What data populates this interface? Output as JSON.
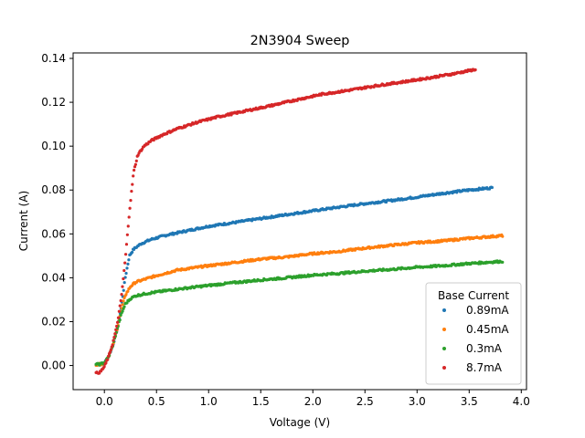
{
  "chart_data": {
    "type": "scatter",
    "title": "2N3904 Sweep",
    "xlabel": "Voltage (V)",
    "ylabel": "Current (A)",
    "xlim": [
      -0.3,
      4.05
    ],
    "ylim": [
      -0.011,
      0.1425
    ],
    "x_ticks": [
      0.0,
      0.5,
      1.0,
      1.5,
      2.0,
      2.5,
      3.0,
      3.5,
      4.0
    ],
    "x_tick_labels": [
      "0.0",
      "0.5",
      "1.0",
      "1.5",
      "2.0",
      "2.5",
      "3.0",
      "3.5",
      "4.0"
    ],
    "y_ticks": [
      0.0,
      0.02,
      0.04,
      0.06,
      0.08,
      0.1,
      0.12,
      0.14
    ],
    "y_tick_labels": [
      "0.00",
      "0.02",
      "0.04",
      "0.06",
      "0.08",
      "0.10",
      "0.12",
      "0.14"
    ],
    "grid": false,
    "legend": {
      "title": "Base Current",
      "position": "lower-right"
    },
    "series": [
      {
        "name": "0.89mA",
        "color": "#1f77b4",
        "points": [
          [
            -0.08,
            0.0005
          ],
          [
            -0.04,
            0.0006
          ],
          [
            0.0,
            0.0012
          ],
          [
            0.04,
            0.004
          ],
          [
            0.08,
            0.009
          ],
          [
            0.12,
            0.016
          ],
          [
            0.16,
            0.026
          ],
          [
            0.2,
            0.04
          ],
          [
            0.24,
            0.05
          ],
          [
            0.28,
            0.053
          ],
          [
            0.35,
            0.0555
          ],
          [
            0.45,
            0.0575
          ],
          [
            0.6,
            0.0595
          ],
          [
            0.8,
            0.0615
          ],
          [
            1.0,
            0.0635
          ],
          [
            1.25,
            0.0652
          ],
          [
            1.5,
            0.067
          ],
          [
            1.75,
            0.0688
          ],
          [
            2.0,
            0.0705
          ],
          [
            2.25,
            0.0722
          ],
          [
            2.5,
            0.0738
          ],
          [
            2.75,
            0.0752
          ],
          [
            3.0,
            0.0768
          ],
          [
            3.25,
            0.0785
          ],
          [
            3.5,
            0.08
          ],
          [
            3.72,
            0.081
          ]
        ]
      },
      {
        "name": "0.45mA",
        "color": "#ff7f0e",
        "points": [
          [
            -0.08,
            0.0005
          ],
          [
            -0.04,
            0.0006
          ],
          [
            0.0,
            0.0012
          ],
          [
            0.04,
            0.004
          ],
          [
            0.08,
            0.009
          ],
          [
            0.12,
            0.016
          ],
          [
            0.16,
            0.025
          ],
          [
            0.2,
            0.032
          ],
          [
            0.25,
            0.036
          ],
          [
            0.3,
            0.038
          ],
          [
            0.4,
            0.0395
          ],
          [
            0.5,
            0.041
          ],
          [
            0.7,
            0.0435
          ],
          [
            1.0,
            0.0455
          ],
          [
            1.25,
            0.047
          ],
          [
            1.5,
            0.0485
          ],
          [
            1.75,
            0.0495
          ],
          [
            2.0,
            0.051
          ],
          [
            2.25,
            0.052
          ],
          [
            2.5,
            0.0535
          ],
          [
            2.75,
            0.0548
          ],
          [
            3.0,
            0.056
          ],
          [
            3.25,
            0.0568
          ],
          [
            3.5,
            0.058
          ],
          [
            3.82,
            0.0592
          ]
        ]
      },
      {
        "name": "0.3mA",
        "color": "#2ca02c",
        "points": [
          [
            -0.08,
            0.0005
          ],
          [
            -0.04,
            0.0006
          ],
          [
            0.0,
            0.0012
          ],
          [
            0.04,
            0.004
          ],
          [
            0.08,
            0.009
          ],
          [
            0.12,
            0.016
          ],
          [
            0.16,
            0.023
          ],
          [
            0.2,
            0.028
          ],
          [
            0.25,
            0.0305
          ],
          [
            0.3,
            0.0318
          ],
          [
            0.4,
            0.0328
          ],
          [
            0.5,
            0.0335
          ],
          [
            0.7,
            0.0348
          ],
          [
            1.0,
            0.0365
          ],
          [
            1.25,
            0.0378
          ],
          [
            1.5,
            0.039
          ],
          [
            1.75,
            0.04
          ],
          [
            2.0,
            0.0412
          ],
          [
            2.25,
            0.042
          ],
          [
            2.5,
            0.043
          ],
          [
            2.75,
            0.0438
          ],
          [
            3.0,
            0.0448
          ],
          [
            3.25,
            0.0455
          ],
          [
            3.5,
            0.0465
          ],
          [
            3.82,
            0.0475
          ]
        ]
      },
      {
        "name": "8.7mA",
        "color": "#d62728",
        "points": [
          [
            -0.08,
            -0.0035
          ],
          [
            -0.04,
            -0.003
          ],
          [
            0.0,
            -0.0005
          ],
          [
            0.04,
            0.004
          ],
          [
            0.08,
            0.01
          ],
          [
            0.12,
            0.018
          ],
          [
            0.16,
            0.03
          ],
          [
            0.2,
            0.048
          ],
          [
            0.24,
            0.07
          ],
          [
            0.28,
            0.088
          ],
          [
            0.32,
            0.096
          ],
          [
            0.38,
            0.1
          ],
          [
            0.45,
            0.1025
          ],
          [
            0.55,
            0.105
          ],
          [
            0.7,
            0.108
          ],
          [
            0.9,
            0.111
          ],
          [
            1.1,
            0.1135
          ],
          [
            1.35,
            0.116
          ],
          [
            1.6,
            0.1185
          ],
          [
            1.85,
            0.1212
          ],
          [
            2.1,
            0.1238
          ],
          [
            2.35,
            0.1255
          ],
          [
            2.6,
            0.1275
          ],
          [
            2.85,
            0.1292
          ],
          [
            3.1,
            0.131
          ],
          [
            3.35,
            0.133
          ],
          [
            3.56,
            0.135
          ]
        ]
      }
    ]
  }
}
